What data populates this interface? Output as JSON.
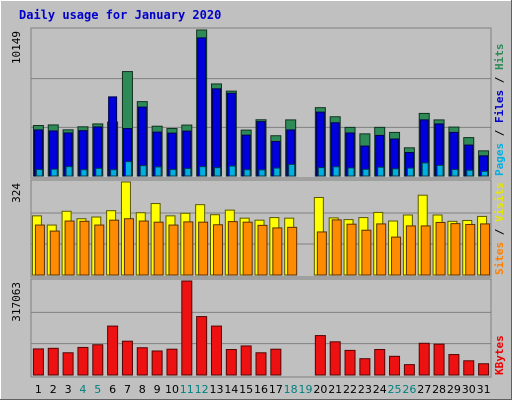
{
  "chart_data": {
    "type": "bar",
    "title": "Daily usage for January 2020",
    "categories": [
      "1",
      "2",
      "3",
      "4",
      "5",
      "6",
      "7",
      "8",
      "9",
      "10",
      "11",
      "12",
      "13",
      "14",
      "15",
      "16",
      "17",
      "18",
      "19",
      "20",
      "21",
      "22",
      "23",
      "24",
      "25",
      "26",
      "27",
      "28",
      "29",
      "30",
      "31"
    ],
    "weekend_days": [
      "4",
      "5",
      "11",
      "12",
      "18",
      "19",
      "25",
      "26"
    ],
    "panels": [
      {
        "id": "hits-files-pages",
        "max_label": "10149",
        "ymax": 10149,
        "ylabel_parts": [
          {
            "text": "Pages",
            "color": "#00b0e0"
          },
          {
            "text": " / ",
            "color": "#000000"
          },
          {
            "text": "Files",
            "color": "#0000cc"
          },
          {
            "text": " / ",
            "color": "#000000"
          },
          {
            "text": "Hits",
            "color": "#2e8b57"
          }
        ],
        "series": [
          {
            "name": "Hits",
            "color": "#2e8b57",
            "values": [
              3510,
              3550,
              3210,
              3420,
              3620,
              3750,
              7260,
              5170,
              3460,
              3300,
              3540,
              10149,
              6400,
              5900,
              3190,
              3910,
              2800,
              3900,
              null,
              4750,
              4120,
              3380,
              2930,
              3380,
              3030,
              1960,
              4350,
              3900,
              3400,
              2670,
              1750
            ]
          },
          {
            "name": "Files",
            "color": "#0000dd",
            "values": [
              3200,
              3130,
              2990,
              3150,
              3410,
              5500,
              3300,
              4790,
              3050,
              2980,
              3120,
              9600,
              6060,
              5750,
              2840,
              3780,
              2400,
              3200,
              null,
              4440,
              3700,
              2990,
              2080,
              2820,
              2570,
              1630,
              3900,
              3620,
              3030,
              2150,
              1400
            ]
          },
          {
            "name": "Pages",
            "color": "#00b0e0",
            "values": [
              450,
              470,
              650,
              440,
              530,
              440,
              1000,
              720,
              630,
              450,
              520,
              650,
              580,
              690,
              440,
              430,
              550,
              800,
              null,
              580,
              640,
              560,
              460,
              610,
              500,
              550,
              910,
              740,
              450,
              400,
              320
            ]
          }
        ]
      },
      {
        "id": "visits-sites",
        "max_label": "324",
        "ymax": 324,
        "ylabel_parts": [
          {
            "text": "Sites",
            "color": "#ff8000"
          },
          {
            "text": " / ",
            "color": "#000000"
          },
          {
            "text": "Visits",
            "color": "#e6e600"
          }
        ],
        "series": [
          {
            "name": "Visits",
            "color": "#ffff00",
            "values": [
              206,
              174,
              222,
              196,
              202,
              224,
              324,
              217,
              249,
              206,
              215,
              245,
              210,
              226,
              198,
              191,
              200,
              198,
              null,
              270,
              199,
              193,
              200,
              218,
              188,
              209,
              278,
              209,
              187,
              190,
              204
            ]
          },
          {
            "name": "Sites",
            "color": "#ff8c00",
            "values": [
              174,
              153,
              188,
              187,
              174,
              191,
              196,
              188,
              184,
              174,
              185,
              184,
              175,
              186,
              184,
              173,
              164,
              166,
              null,
              150,
              192,
              177,
              156,
              178,
              132,
              171,
              171,
              183,
              179,
              176,
              178
            ]
          }
        ]
      },
      {
        "id": "kbytes",
        "max_label": "317063",
        "ymax": 317063,
        "ylabel_parts": [
          {
            "text": "KBytes",
            "color": "#ee0000"
          }
        ],
        "series": [
          {
            "name": "KBytes",
            "color": "#ee1111",
            "values": [
              88000,
              90000,
              75000,
              93000,
              102000,
              165000,
              114000,
              92000,
              81000,
              87000,
              317063,
              197000,
              165000,
              86000,
              98000,
              75000,
              87000,
              null,
              null,
              133000,
              112000,
              83000,
              55000,
              86000,
              63000,
              35000,
              107000,
              104000,
              69000,
              48000,
              38000
            ]
          }
        ]
      }
    ]
  }
}
